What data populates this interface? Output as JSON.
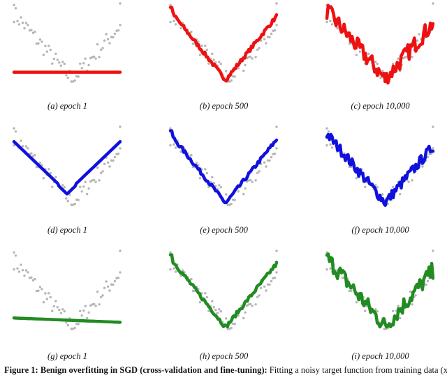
{
  "chart_data": [
    {
      "type": "line",
      "title": "(a) epoch 1",
      "color": "#ee1111",
      "noise": 0,
      "fit": "flat",
      "y0": 0.12
    },
    {
      "type": "line",
      "title": "(b) epoch 500",
      "color": "#ee1111",
      "noise": 0,
      "fit": "smooth"
    },
    {
      "type": "line",
      "title": "(c) epoch 10,000",
      "color": "#ee1111",
      "noise": 1,
      "fit": "wiggly"
    },
    {
      "type": "line",
      "title": "(d) epoch 1",
      "color": "#1111dd",
      "noise": 0,
      "fit": "vee"
    },
    {
      "type": "line",
      "title": "(e) epoch 500",
      "color": "#1111dd",
      "noise": 0,
      "fit": "smooth"
    },
    {
      "type": "line",
      "title": "(f) epoch 10,000",
      "color": "#1111dd",
      "noise": 0.6,
      "fit": "wiggly"
    },
    {
      "type": "line",
      "title": "(g) epoch 1",
      "color": "#228b22",
      "noise": 0,
      "fit": "slope"
    },
    {
      "type": "line",
      "title": "(h) epoch 500",
      "color": "#228b22",
      "noise": 0,
      "fit": "smooth"
    },
    {
      "type": "line",
      "title": "(i) epoch 10,000",
      "color": "#228b22",
      "noise": 1,
      "fit": "wiggly"
    }
  ],
  "scatter_color": "#b5b5b5",
  "figure_caption": {
    "bold": "Figure 1: Benign overfitting in SGD (cross-validation and fine-tuning):",
    "rest": " Fitting a noisy target function from training data (x_i, y_i)"
  }
}
